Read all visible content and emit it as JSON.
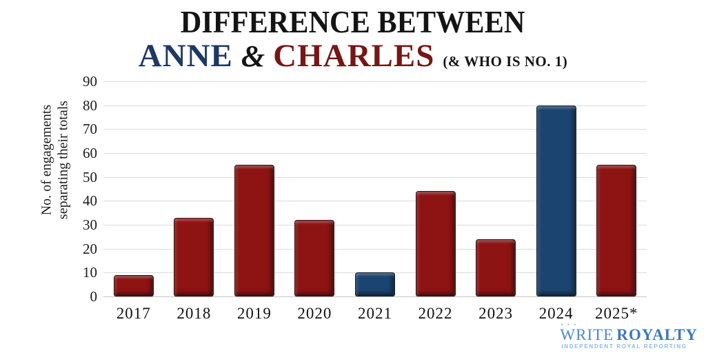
{
  "title": {
    "line1": "DIFFERENCE BETWEEN",
    "anne": "ANNE",
    "ampersand": "&",
    "charles": "CHARLES",
    "subtitle": "(& WHO IS NO. 1)"
  },
  "colors": {
    "anne_blue": "#1F3864",
    "charles_red": "#771616",
    "bar_blue": "#1B4470",
    "bar_red": "#8E1313",
    "gridline": "#DBDBDB",
    "logo_blue": "#3C79BE",
    "logo_light_blue": "#8FB8E2"
  },
  "chart_data": {
    "type": "bar",
    "title": "Difference between Anne & Charles (& who is No. 1)",
    "categories": [
      "2017",
      "2018",
      "2019",
      "2020",
      "2021",
      "2022",
      "2023",
      "2024",
      "2025*"
    ],
    "values": [
      9,
      33,
      55,
      32,
      10,
      44,
      24,
      80,
      55
    ],
    "bar_colors": [
      "#8E1313",
      "#8E1313",
      "#8E1313",
      "#8E1313",
      "#1B4470",
      "#8E1313",
      "#8E1313",
      "#1B4470",
      "#8E1313"
    ],
    "xlabel": "",
    "ylabel": "No. of engagements separating their totals",
    "ylabel_lines": [
      "No. of engagements",
      "separating their totals"
    ],
    "yticks": [
      0,
      10,
      20,
      30,
      40,
      50,
      60,
      70,
      80,
      90
    ],
    "ylim": [
      0,
      90
    ],
    "grid": true,
    "legend": false
  },
  "footer": {
    "crown_icon": "• • •",
    "logo_word1": "WRITE",
    "logo_word2": "ROYALTY",
    "tagline": "INDEPENDENT ROYAL REPORTING"
  }
}
